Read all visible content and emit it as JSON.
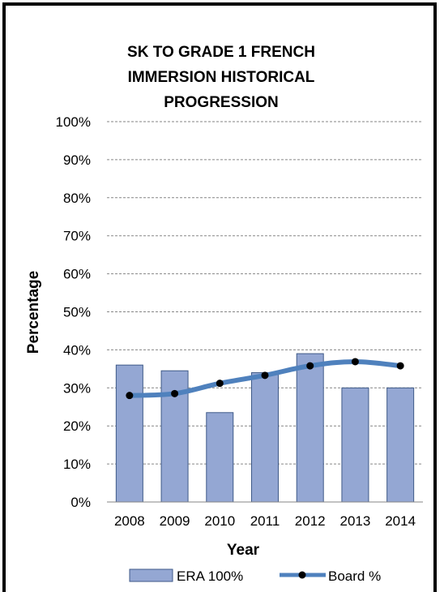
{
  "chart_data": {
    "type": "bar",
    "title_lines": [
      "SK TO GRADE 1 FRENCH",
      "IMMERSION HISTORICAL",
      "PROGRESSION"
    ],
    "xlabel": "Year",
    "ylabel": "Percentage",
    "categories": [
      "2008",
      "2009",
      "2010",
      "2011",
      "2012",
      "2013",
      "2014"
    ],
    "ylim": [
      0,
      100
    ],
    "yticks": [
      "0%",
      "10%",
      "20%",
      "30%",
      "40%",
      "50%",
      "60%",
      "70%",
      "80%",
      "90%",
      "100%"
    ],
    "grid": true,
    "legend_position": "bottom",
    "series": [
      {
        "name": "ERA 100%",
        "kind": "bar",
        "color": "#94a7d3",
        "stroke": "#3f5a88",
        "values": [
          36,
          34.5,
          23.5,
          34,
          39,
          30,
          30
        ]
      },
      {
        "name": "Board %",
        "kind": "line",
        "color": "#4f81bd",
        "marker": "#000000",
        "values": [
          28,
          28.5,
          31.2,
          33.3,
          35.8,
          36.9,
          35.8
        ]
      }
    ]
  }
}
